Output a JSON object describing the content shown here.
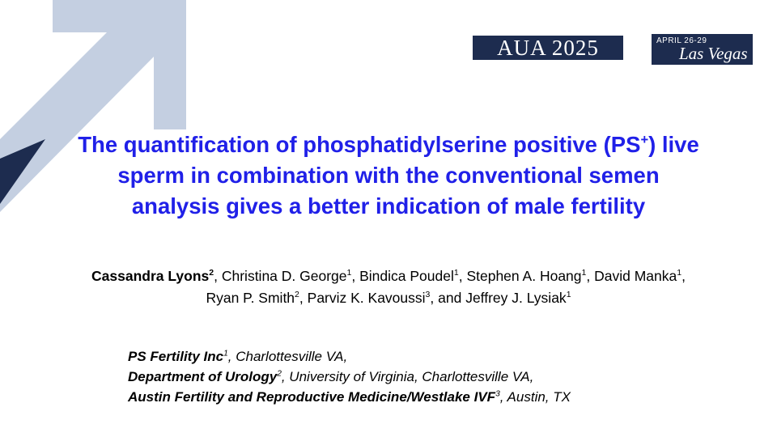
{
  "logos": {
    "conference": "AUA 2025",
    "dates": "APRIL 26-29",
    "city": "Las Vegas"
  },
  "title": {
    "line1": {
      "before": "The quantification of phosphatidylserine positive (PS",
      "sup": "+",
      "after": ") live"
    },
    "line2": "sperm in combination with the conventional semen",
    "line3": "analysis gives a better indication of male fertility"
  },
  "authors": {
    "line1": [
      {
        "name": "Cassandra Lyons",
        "sup": "2",
        "after": ","
      },
      {
        "name": "Christina D. George",
        "sup": "1",
        "after": ","
      },
      {
        "name": "Bindica Poudel",
        "sup": "1",
        "after": ","
      },
      {
        "name": "Stephen A. Hoang",
        "sup": "1",
        "after": ","
      },
      {
        "name": "David Manka",
        "sup": "1",
        "after": ","
      }
    ],
    "line2": [
      {
        "name": "Ryan P. Smith",
        "sup": "2",
        "after": ","
      },
      {
        "name": "Parviz K.  Kavoussi",
        "sup": "3",
        "after": ", and"
      },
      {
        "name": "Jeffrey J. Lysiak",
        "sup": "1"
      }
    ]
  },
  "affiliations": [
    {
      "name": "PS Fertility Inc",
      "sup": "1",
      "rest": ", Charlottesville VA,"
    },
    {
      "name": "Department of Urology",
      "sup": "2",
      "rest": ", University of Virginia, Charlottesville VA,"
    },
    {
      "name": "Austin Fertility and Reproductive Medicine/Westlake IVF",
      "sup": "3",
      "rest": ", Austin, TX"
    }
  ]
}
